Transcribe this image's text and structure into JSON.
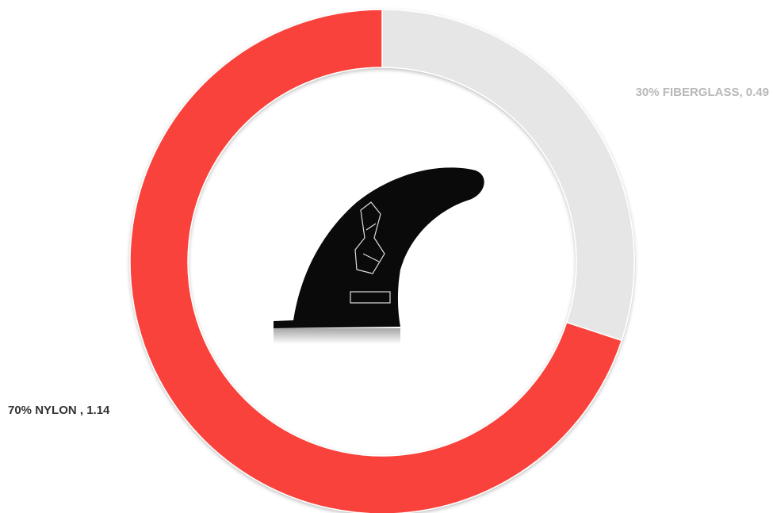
{
  "chart_data": {
    "type": "donut",
    "series": [
      {
        "name": "FIBERGLASS",
        "color": "#e6e6e6",
        "values": [
          0.49
        ],
        "value_labels": [
          "30% FIBERGLASS, 0.49"
        ],
        "label_color": "#b8b8b8"
      },
      {
        "name": "NYLON",
        "color": "#f9423a",
        "values": [
          1.14
        ],
        "value_labels": [
          "70% NYLON , 1.14"
        ],
        "label_color": "#333333"
      }
    ]
  }
}
